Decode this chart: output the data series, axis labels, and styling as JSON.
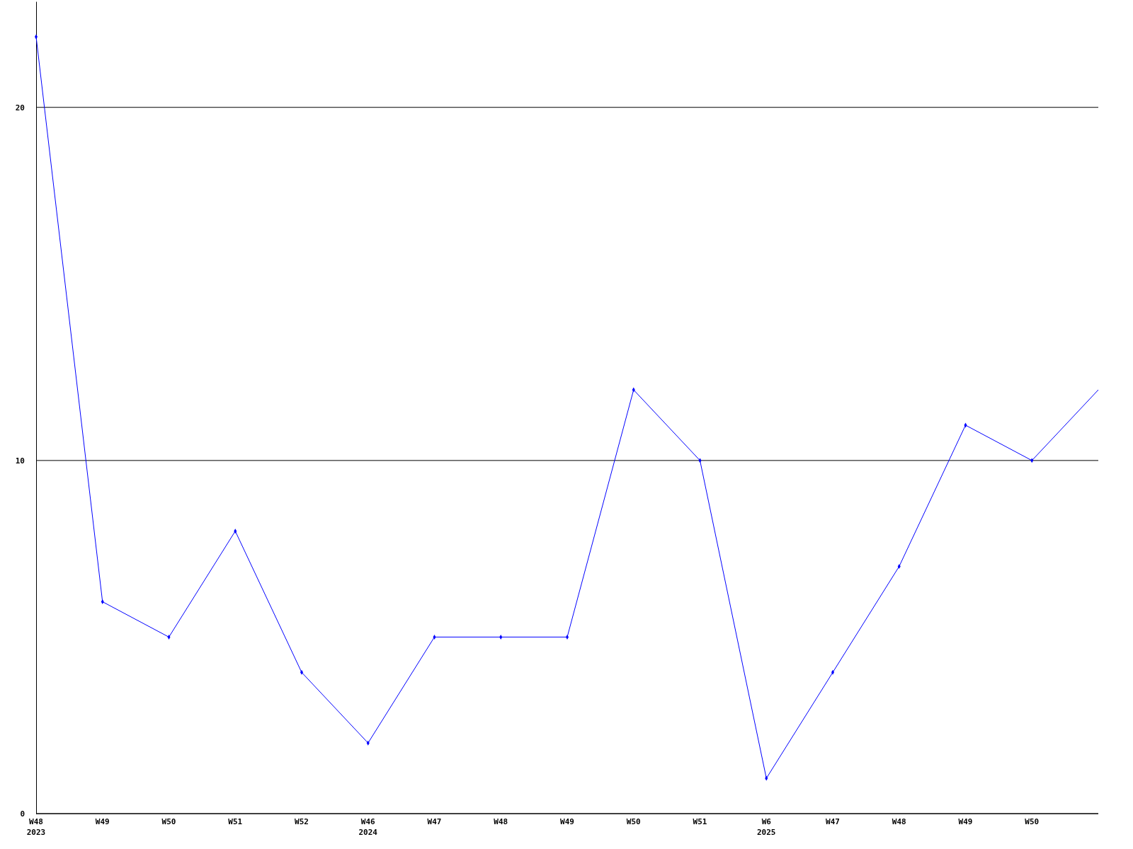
{
  "chart_data": {
    "type": "line",
    "categories": [
      "W48\n2023",
      "W49",
      "W50",
      "W51",
      "W52",
      "W46\n2024",
      "W47",
      "W48",
      "W49",
      "W50",
      "W51",
      "W6\n2025",
      "W47",
      "W48",
      "W49",
      "W50",
      null
    ],
    "series": [
      {
        "color": "#0000ff",
        "values": [
          22,
          6,
          5,
          8,
          4,
          2,
          5,
          5,
          5,
          12,
          10,
          1,
          4,
          7,
          11,
          10,
          12
        ]
      }
    ],
    "ylim": [
      0,
      23
    ],
    "yticks": [
      0,
      10,
      20
    ],
    "grid": "y",
    "marker": "diamond",
    "line_style": "solid"
  }
}
